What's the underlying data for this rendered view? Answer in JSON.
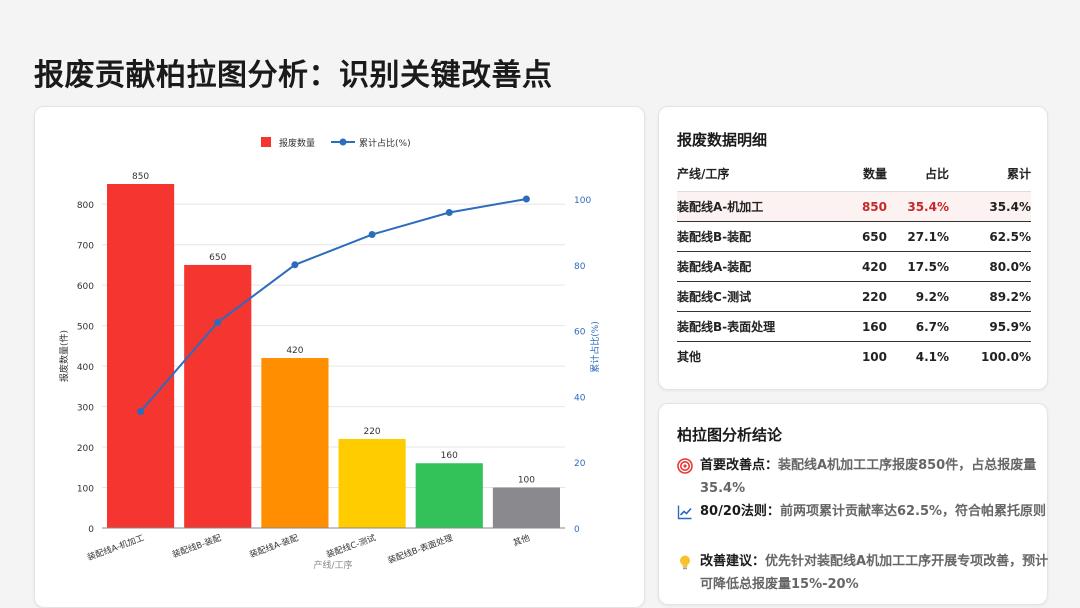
{
  "page": {
    "title": "报废贡献柏拉图分析：识别关键改善点"
  },
  "chart_data": {
    "type": "bar",
    "categories": [
      "装配线A-机加工",
      "装配线B-装配",
      "装配线A-装配",
      "装配线C-测试",
      "装配线B-表面处理",
      "其他"
    ],
    "series": [
      {
        "name": "报废数量",
        "type": "bar",
        "values": [
          850,
          650,
          420,
          220,
          160,
          100
        ]
      },
      {
        "name": "累计占比(%)",
        "type": "line",
        "axis": "right",
        "values": [
          35.4,
          62.5,
          80.0,
          89.2,
          95.9,
          100.0
        ]
      }
    ],
    "bar_labels": [
      "850",
      "650",
      "420",
      "220",
      "160",
      "100"
    ],
    "bar_colors": [
      "#f5352f",
      "#f5352f",
      "#ff8f00",
      "#ffcc00",
      "#33c15a",
      "#8a8a8e"
    ],
    "line_color": "#2d6cbd",
    "xlabel": "产线/工序",
    "ylabel": "报废数量(件)",
    "y2label": "累计占比(%)",
    "ylim": [
      0,
      850
    ],
    "yticks": [
      0,
      100,
      200,
      300,
      400,
      500,
      600,
      700,
      800
    ],
    "y2lim": [
      0,
      100
    ],
    "y2ticks": [
      0,
      20,
      40,
      60,
      80,
      100
    ],
    "legend_position": "top-center",
    "grid": true
  },
  "table": {
    "title": "报废数据明细",
    "headers": [
      "产线/工序",
      "数量",
      "占比",
      "累计"
    ],
    "rows": [
      {
        "name": "装配线A-机加工",
        "qty": "850",
        "pct": "35.4%",
        "cum": "35.4%"
      },
      {
        "name": "装配线B-装配",
        "qty": "650",
        "pct": "27.1%",
        "cum": "62.5%"
      },
      {
        "name": "装配线A-装配",
        "qty": "420",
        "pct": "17.5%",
        "cum": "80.0%"
      },
      {
        "name": "装配线C-测试",
        "qty": "220",
        "pct": "9.2%",
        "cum": "89.2%"
      },
      {
        "name": "装配线B-表面处理",
        "qty": "160",
        "pct": "6.7%",
        "cum": "95.9%"
      },
      {
        "name": "其他",
        "qty": "100",
        "pct": "4.1%",
        "cum": "100.0%"
      }
    ],
    "highlight_color": "#c62828"
  },
  "conclusion": {
    "title": "柏拉图分析结论",
    "items": [
      {
        "icon": "target-icon",
        "label": "首要改善点：",
        "text": "装配线A机加工工序报废850件，占总报废量35.4%"
      },
      {
        "icon": "trend-chart-icon",
        "label": "80/20法则：",
        "text": "前两项累计贡献率达62.5%，符合帕累托原则"
      },
      {
        "icon": "lightbulb-icon",
        "label": "改善建议：",
        "text": "优先针对装配线A机加工工序开展专项改善，预计可降低总报废量15%-20%"
      }
    ]
  }
}
